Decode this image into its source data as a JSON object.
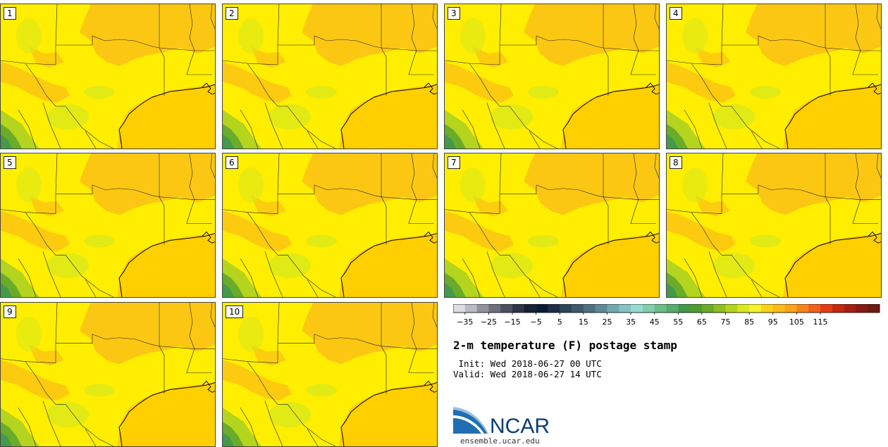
{
  "panels": [
    {
      "label": "1"
    },
    {
      "label": "2"
    },
    {
      "label": "3"
    },
    {
      "label": "4"
    },
    {
      "label": "5"
    },
    {
      "label": "6"
    },
    {
      "label": "7"
    },
    {
      "label": "8"
    },
    {
      "label": "9"
    },
    {
      "label": "10"
    }
  ],
  "colorbar": {
    "colors": [
      "#dcdce4",
      "#b8b9c3",
      "#90939e",
      "#6c707c",
      "#4a5060",
      "#2e3545",
      "#182236",
      "#0c1a33",
      "#1e2d47",
      "#2f4559",
      "#3e5a6b",
      "#4e7081",
      "#5e8a98",
      "#74a8b0",
      "#86c2c4",
      "#97dcd2",
      "#83cfa9",
      "#6cbd8a",
      "#56ad6e",
      "#449a4a",
      "#4f9c30",
      "#6aab2a",
      "#8cbf20",
      "#b4d41e",
      "#dbe81a",
      "#f7f22a",
      "#fcd216",
      "#ffba18",
      "#fba418",
      "#f7841a",
      "#f2621a",
      "#e63c14",
      "#c42a10",
      "#a51f12",
      "#871a12",
      "#6f1a13"
    ],
    "tick_labels": [
      "−35",
      "−25",
      "−15",
      "−5",
      "5",
      "15",
      "25",
      "35",
      "45",
      "55",
      "65",
      "75",
      "85",
      "95",
      "105",
      "115"
    ]
  },
  "title": "2-m temperature (F) postage stamp",
  "init_line": " Init: Wed 2018-06-27 00 UTC",
  "valid_line": "Valid: Wed 2018-06-27 14 UTC",
  "logo_text": "NCAR",
  "url": "ensemble.ucar.edu",
  "map_colors": {
    "land": "#ffee00",
    "gulf": "#ffcf00",
    "warm": "#fbbf16",
    "cool": "#dbe81a",
    "cooler": "#b4d41e",
    "green": "#6aab2a",
    "darkgreen": "#449a4a",
    "line": "#222222",
    "logo_blue": "#0a3d73"
  }
}
